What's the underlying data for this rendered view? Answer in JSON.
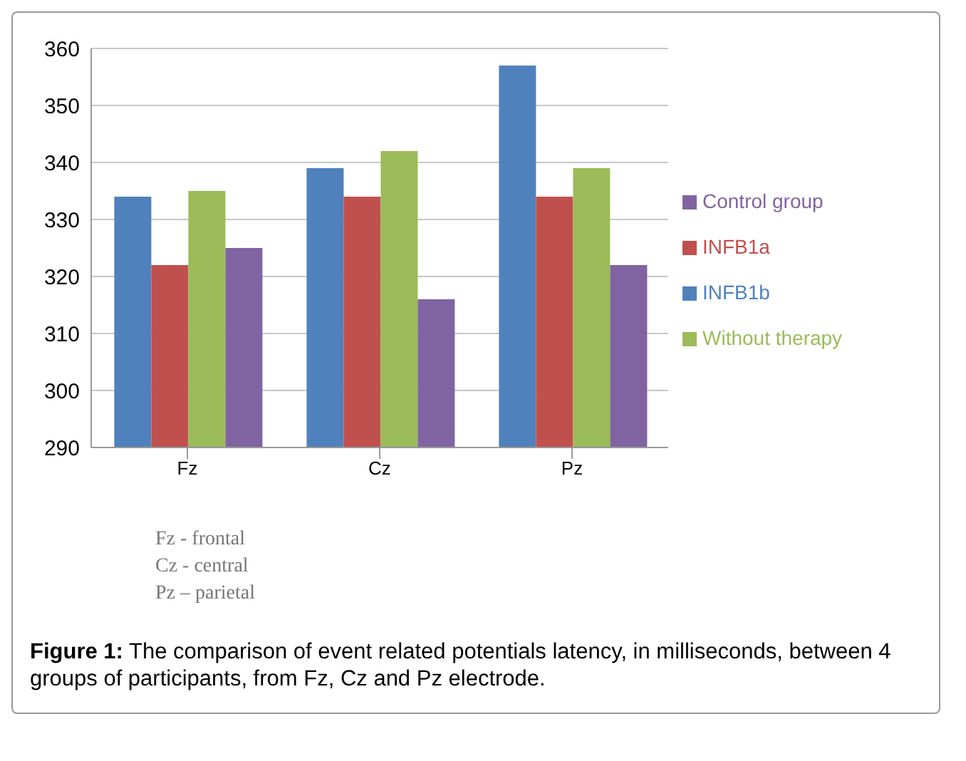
{
  "chart_data": {
    "type": "bar",
    "categories": [
      "Fz",
      "Cz",
      "Pz"
    ],
    "series": [
      {
        "name": "INFB1b",
        "color": "#4f81bd",
        "values": [
          334,
          339,
          357
        ]
      },
      {
        "name": "INFB1a",
        "color": "#c0504d",
        "values": [
          322,
          334,
          334
        ]
      },
      {
        "name": "Without therapy",
        "color": "#9bbb59",
        "values": [
          335,
          342,
          339
        ]
      },
      {
        "name": "Control group",
        "color": "#8064a2",
        "values": [
          325,
          316,
          322
        ]
      }
    ],
    "ylim": [
      290,
      360
    ],
    "yticks": [
      290,
      300,
      310,
      320,
      330,
      340,
      350,
      360
    ],
    "grid": "y",
    "legend": "right",
    "annotations": [
      "Fz - frontal",
      "Cz - central",
      "Pz – parietal",
      "Figure 1: The comparison of event related potentials latency, in milliseconds, between 4 groups of participants, from Fz, Cz and Pz electrode."
    ]
  }
}
